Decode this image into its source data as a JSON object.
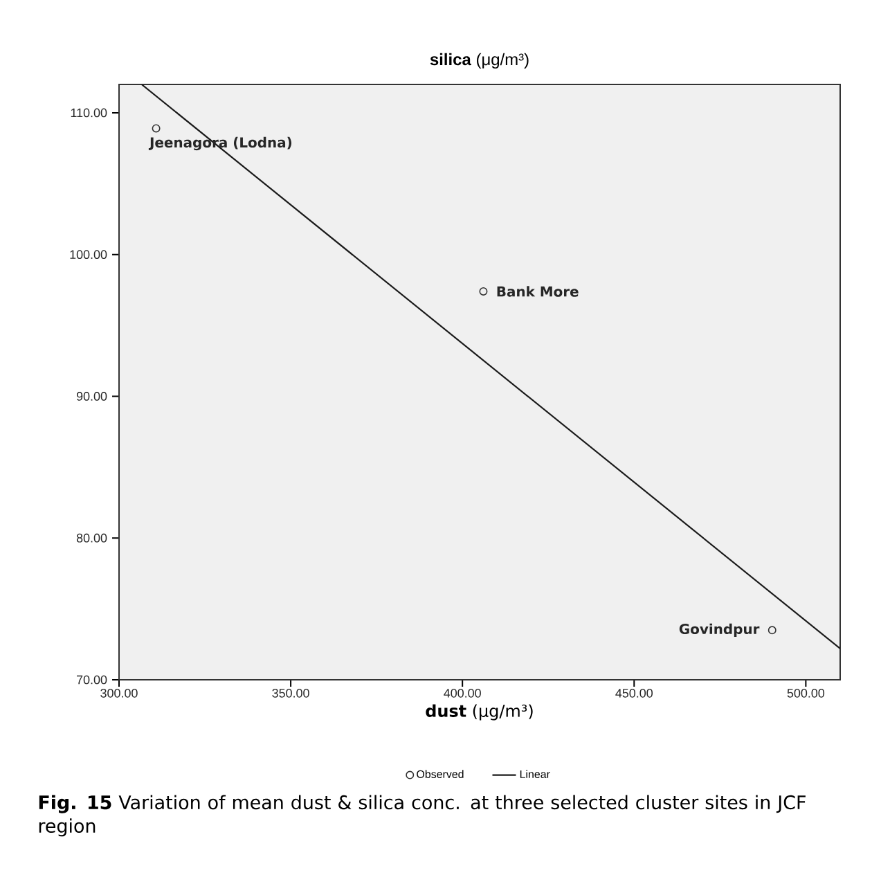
{
  "chart_data": {
    "type": "scatter",
    "title": "**silica** (μg/m³)",
    "xlabel": "**dust** (μg/m³)",
    "xlim": [
      300,
      510
    ],
    "xticks": [
      {
        "value": 300,
        "label": "300.00"
      },
      {
        "value": 350,
        "label": "350.00"
      },
      {
        "value": 400,
        "label": "400.00"
      },
      {
        "value": 450,
        "label": "450.00"
      },
      {
        "value": 500,
        "label": "500.00"
      }
    ],
    "ylim": [
      70,
      112
    ],
    "yticks": [
      {
        "value": 70,
        "label": "70.00"
      },
      {
        "value": 80,
        "label": "80.00"
      },
      {
        "value": 90,
        "label": "90.00"
      },
      {
        "value": 100,
        "label": "100.00"
      },
      {
        "value": 110,
        "label": "110.00"
      }
    ],
    "series": [
      {
        "name": "Observed",
        "color": "#333333",
        "marker": "circle",
        "x": [
          310.8,
          406.1,
          490.2
        ],
        "values": [
          108.9,
          97.4,
          73.5
        ]
      },
      {
        "name": "Linear",
        "type": "line",
        "color": "#1a1a1a",
        "marker": "none",
        "line_style": "solid",
        "x": [
          306.6,
          510
        ],
        "values": [
          112,
          72.2
        ]
      }
    ],
    "annotations": [
      {
        "text": "Jeenagora (Lodna)",
        "x": 310.8,
        "y": 108.9
      },
      {
        "text": "Bank More",
        "x": 406.1,
        "y": 97.4
      },
      {
        "text": "Govindpur",
        "x": 490.2,
        "y": 73.5
      },
      "**Fig. 15** Variation of mean dust & silica conc. at three selected cluster sites in JCF region"
    ],
    "legend": "bottom",
    "grid": false
  }
}
